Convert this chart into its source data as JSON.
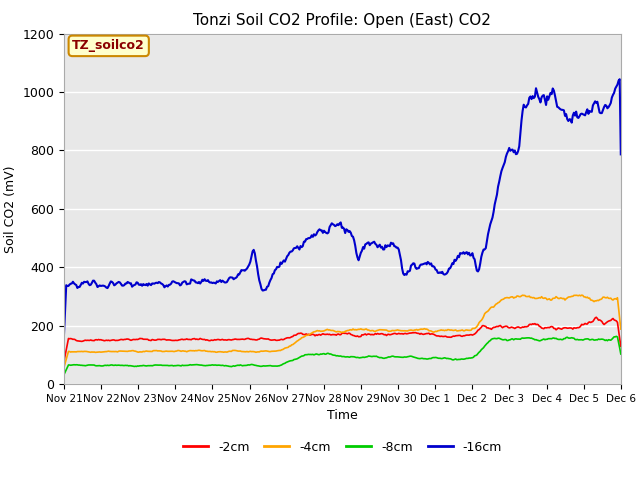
{
  "title": "Tonzi Soil CO2 Profile: Open (East) CO2",
  "xlabel": "Time",
  "ylabel": "Soil CO2 (mV)",
  "legend_label": "TZ_soilco2",
  "series_labels": [
    "-2cm",
    "-4cm",
    "-8cm",
    "-16cm"
  ],
  "series_colors": [
    "#ff0000",
    "#ffa500",
    "#00cc00",
    "#0000cc"
  ],
  "ylim": [
    0,
    1200
  ],
  "bg_color": "#e8e8e8",
  "legend_box_color": "#ffffcc",
  "legend_box_edge": "#cc8800",
  "tick_labels": [
    "Nov 21",
    "Nov 22",
    "Nov 23",
    "Nov 24",
    "Nov 25",
    "Nov 26",
    "Nov 27",
    "Nov 28",
    "Nov 29",
    "Nov 30",
    "Dec 1",
    "Dec 2",
    "Dec 3",
    "Dec 4",
    "Dec 5",
    "Dec 6"
  ],
  "n_points": 500
}
